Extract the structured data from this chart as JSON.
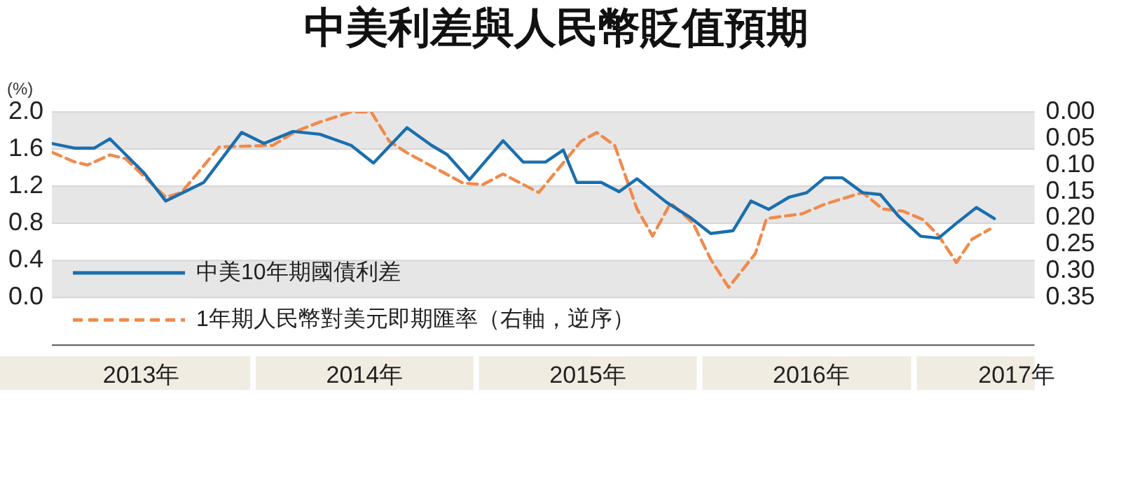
{
  "chart_data": {
    "type": "line",
    "title": "中美利差與人民幣貶值預期",
    "ylabel": "(%)",
    "xlim": [
      2013.1,
      2017.5
    ],
    "xticks": [
      {
        "value": 2013.5,
        "label": "2013年"
      },
      {
        "value": 2014.5,
        "label": "2014年"
      },
      {
        "value": 2015.5,
        "label": "2015年"
      },
      {
        "value": 2016.5,
        "label": "2016年"
      },
      {
        "value": 2017.42,
        "label": "2017年"
      }
    ],
    "ylim": [
      0,
      2
    ],
    "yticks": [
      {
        "value": 0,
        "label": "0.0"
      },
      {
        "value": 0.4,
        "label": "0.4"
      },
      {
        "value": 0.8,
        "label": "0.8"
      },
      {
        "value": 1.2,
        "label": "1.2"
      },
      {
        "value": 1.6,
        "label": "1.6"
      },
      {
        "value": 2,
        "label": "2.0"
      }
    ],
    "y2lim": [
      0.35,
      0
    ],
    "y2ticks": [
      {
        "value": 0,
        "label": "0.00"
      },
      {
        "value": 0.05,
        "label": "0.05"
      },
      {
        "value": 0.1,
        "label": "0.10"
      },
      {
        "value": 0.15,
        "label": "0.15"
      },
      {
        "value": 0.2,
        "label": "0.20"
      },
      {
        "value": 0.25,
        "label": "0.25"
      },
      {
        "value": 0.3,
        "label": "0.30"
      },
      {
        "value": 0.35,
        "label": "0.35"
      }
    ],
    "grid": "y",
    "legend": "bottom left",
    "marker": "none",
    "series": [
      {
        "name": "中美10年期國債利差",
        "color": "#1a6fae",
        "line_style": "solid",
        "x": [
          2013.1,
          2013.2,
          2013.29,
          2013.36,
          2013.51,
          2013.61,
          2013.78,
          2013.95,
          2014.05,
          2014.18,
          2014.3,
          2014.44,
          2014.54,
          2014.69,
          2014.8,
          2014.87,
          2014.97,
          2015.12,
          2015.21,
          2015.31,
          2015.39,
          2015.45,
          2015.56,
          2015.64,
          2015.72,
          2015.85,
          2015.96,
          2016.05,
          2016.15,
          2016.23,
          2016.31,
          2016.4,
          2016.48,
          2016.56,
          2016.64,
          2016.73,
          2016.81,
          2016.89,
          2016.99,
          2017.07,
          2017.15,
          2017.24,
          2017.32
        ],
        "values": [
          1.66,
          1.61,
          1.61,
          1.71,
          1.35,
          1.04,
          1.24,
          1.78,
          1.66,
          1.79,
          1.76,
          1.64,
          1.45,
          1.83,
          1.64,
          1.54,
          1.27,
          1.69,
          1.46,
          1.46,
          1.59,
          1.24,
          1.24,
          1.14,
          1.28,
          1.03,
          0.86,
          0.69,
          0.72,
          1.04,
          0.95,
          1.08,
          1.13,
          1.29,
          1.29,
          1.13,
          1.11,
          0.88,
          0.66,
          0.64,
          0.8,
          0.97,
          0.85
        ]
      },
      {
        "name": "1年期人民幣對美元即期匯率（右軸，逆序）",
        "color": "#f08a4b",
        "line_style": "dashed",
        "axis": "y2",
        "x": [
          2013.1,
          2013.2,
          2013.26,
          2013.36,
          2013.43,
          2013.61,
          2013.68,
          2013.85,
          2014.09,
          2014.19,
          2014.3,
          2014.44,
          2014.53,
          2014.61,
          2014.69,
          2014.94,
          2015.03,
          2015.12,
          2015.28,
          2015.39,
          2015.47,
          2015.54,
          2015.62,
          2015.72,
          2015.79,
          2015.87,
          2015.97,
          2016.05,
          2016.13,
          2016.25,
          2016.3,
          2016.46,
          2016.56,
          2016.73,
          2016.82,
          2016.91,
          2017.0,
          2017.07,
          2017.15,
          2017.22,
          2017.3
        ],
        "values": [
          0.076,
          0.094,
          0.1,
          0.081,
          0.088,
          0.161,
          0.152,
          0.066,
          0.063,
          0.037,
          0.019,
          0,
          0,
          0.055,
          0.077,
          0.134,
          0.137,
          0.117,
          0.152,
          0.096,
          0.055,
          0.039,
          0.063,
          0.183,
          0.234,
          0.172,
          0.209,
          0.278,
          0.331,
          0.267,
          0.201,
          0.192,
          0.174,
          0.152,
          0.183,
          0.187,
          0.203,
          0.233,
          0.284,
          0.24,
          0.221
        ]
      }
    ]
  }
}
